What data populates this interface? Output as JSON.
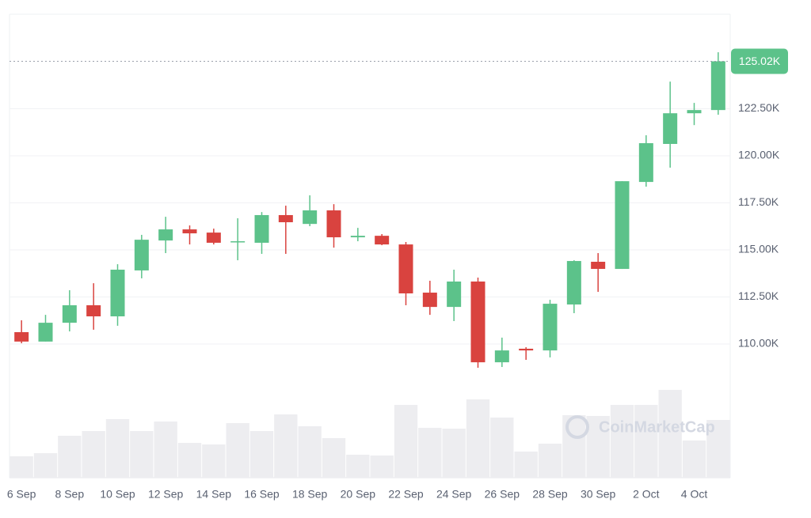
{
  "chart_data": {
    "type": "candlestick",
    "watermark": "CoinMarketCap",
    "categories": [
      "6 Sep",
      null,
      "8 Sep",
      null,
      "10 Sep",
      null,
      "12 Sep",
      null,
      "14 Sep",
      null,
      "16 Sep",
      null,
      "18 Sep",
      null,
      "20 Sep",
      null,
      "22 Sep",
      null,
      "24 Sep",
      null,
      "26 Sep",
      null,
      "28 Sep",
      null,
      "30 Sep",
      null,
      "2 Oct",
      null,
      "4 Oct",
      null
    ],
    "open": [
      110630,
      110130,
      111130,
      112060,
      111470,
      113910,
      115500,
      116090,
      115920,
      115400,
      115380,
      116850,
      116380,
      117100,
      115670,
      115750,
      115290,
      112730,
      111970,
      113320,
      109030,
      109750,
      109660,
      112100,
      114370,
      113990,
      118610,
      120630,
      122260,
      122430
    ],
    "high": [
      111260,
      111550,
      112860,
      113230,
      114240,
      115800,
      116760,
      116300,
      116130,
      116680,
      117010,
      117350,
      117900,
      117430,
      116170,
      115840,
      115420,
      113360,
      113950,
      113530,
      110340,
      109830,
      112350,
      114450,
      114830,
      118650,
      121090,
      123940,
      122810,
      125500
    ],
    "low": [
      110040,
      110130,
      110670,
      110760,
      110970,
      113490,
      114830,
      115290,
      115290,
      114450,
      114790,
      114790,
      116260,
      115120,
      115460,
      115250,
      112060,
      111550,
      111220,
      108740,
      108780,
      109160,
      109290,
      111640,
      112770,
      113990,
      118360,
      119370,
      121630,
      122180
    ],
    "close": [
      110130,
      111130,
      112060,
      111470,
      113950,
      115540,
      116090,
      115880,
      115380,
      115460,
      116850,
      116470,
      117100,
      115670,
      115750,
      115290,
      112690,
      111970,
      113320,
      109030,
      109660,
      109660,
      112140,
      114410,
      113990,
      118650,
      120670,
      122260,
      122430,
      125020
    ],
    "volume": [
      27,
      31,
      53,
      59,
      74,
      59,
      71,
      44,
      42,
      69,
      59,
      80,
      65,
      50,
      29,
      28,
      92,
      63,
      62,
      99,
      76,
      33,
      43,
      79,
      78,
      92,
      92,
      111,
      47,
      73
    ],
    "up_color": "#5cc28a",
    "down_color": "#d9433f",
    "volume_color": "#ededf0",
    "last_price": 125020,
    "last_price_label": "125.02K",
    "ylim": [
      102900,
      127520
    ],
    "yticks": [
      {
        "value": 110000,
        "label": "110.00K"
      },
      {
        "value": 112500,
        "label": "112.50K"
      },
      {
        "value": 115000,
        "label": "115.00K"
      },
      {
        "value": 117500,
        "label": "117.50K"
      },
      {
        "value": 120000,
        "label": "120.00K"
      },
      {
        "value": 122500,
        "label": "122.50K"
      }
    ],
    "grid": true
  }
}
